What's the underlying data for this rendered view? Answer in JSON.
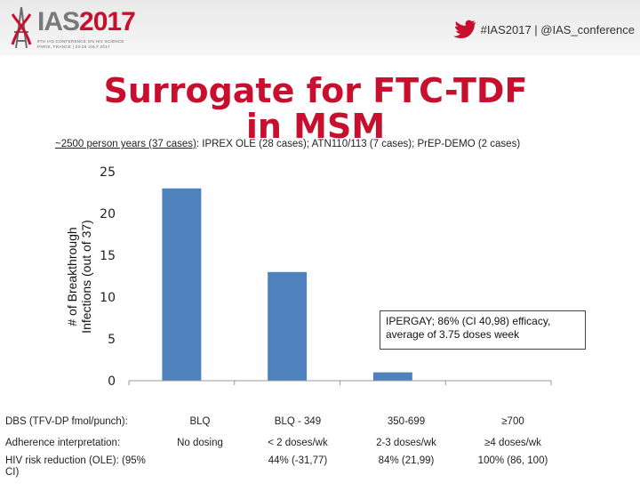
{
  "header": {
    "logo": {
      "ias": "IAS",
      "year": "2017",
      "sub_line1": "9TH IAS CONFERENCE ON HIV SCIENCE",
      "sub_line2": "PARIS, FRANCE | 23-26 JULY 2017"
    },
    "social_text": "#IAS2017 | @IAS_conference",
    "icon": "twitter-bird-icon"
  },
  "colors": {
    "title": "#c8102e",
    "bar": "#4f81bd"
  },
  "slide": {
    "title": "Surrogate for FTC-TDF in MSM",
    "subtitle_part1": "~2500 person years (37 cases)",
    "subtitle_part2": ": IPREX OLE (28 cases); ATN110/113 (7 cases); PrEP-DEMO (2 cases)",
    "annotation": "IPERGAY; 86% (CI 40,98) efficacy, average of 3.75 doses week"
  },
  "chart_data": {
    "type": "bar",
    "categories": [
      "BLQ",
      "BLQ - 349",
      "350-699",
      "≥700"
    ],
    "values": [
      23,
      13,
      1,
      0
    ],
    "ylabel": "# of Breakthrough Infections (out of 37)",
    "ylim": [
      0,
      25
    ],
    "yticks": [
      0,
      5,
      10,
      15,
      20,
      25
    ],
    "grid": false,
    "legend": "none"
  },
  "table": {
    "rows": [
      {
        "label": "DBS (TFV-DP fmol/punch):",
        "cells": [
          "BLQ",
          "BLQ - 349",
          "350-699",
          "≥700"
        ]
      },
      {
        "label": "Adherence interpretation:",
        "cells": [
          "No dosing",
          "< 2 doses/wk",
          "2-3 doses/wk",
          "≥4 doses/wk"
        ]
      },
      {
        "label": "HIV risk reduction (OLE): (95% CI)",
        "cells": [
          "",
          "44% (-31,77)",
          "84% (21,99)",
          "100% (86, 100)"
        ]
      }
    ]
  }
}
